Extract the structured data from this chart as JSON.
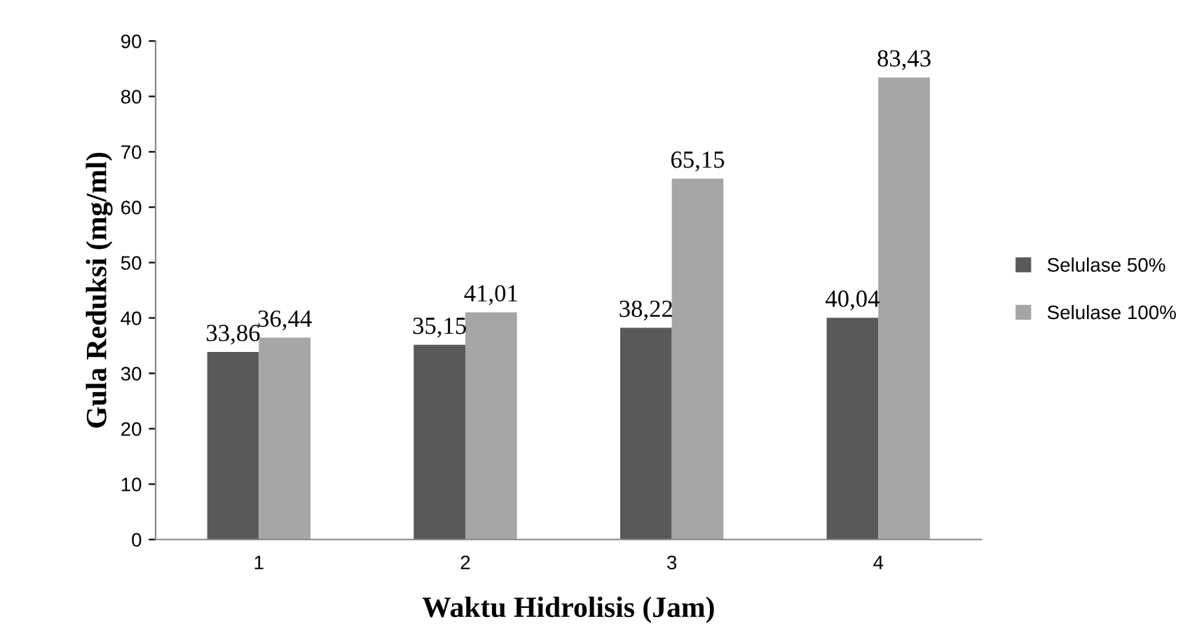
{
  "chart_data": {
    "type": "bar",
    "xlabel": "Waktu Hidrolisis (Jam)",
    "ylabel": "Gula Reduksi (mg/ml)",
    "categories": [
      "1",
      "2",
      "3",
      "4"
    ],
    "series": [
      {
        "name": "Selulase 50%",
        "color": "#595959",
        "values": [
          33.86,
          35.15,
          38.22,
          40.04
        ],
        "value_labels": [
          "33,86",
          "35,15",
          "38,22",
          "40,04"
        ]
      },
      {
        "name": "Selulase 100%",
        "color": "#a6a6a6",
        "values": [
          36.44,
          41.01,
          65.15,
          83.43
        ],
        "value_labels": [
          "36,44",
          "41,01",
          "65,15",
          "83,43"
        ]
      }
    ],
    "ylim": [
      0,
      90
    ],
    "yticks": [
      0,
      10,
      20,
      30,
      40,
      50,
      60,
      70,
      80,
      90
    ],
    "grid": false,
    "legend": "right"
  }
}
